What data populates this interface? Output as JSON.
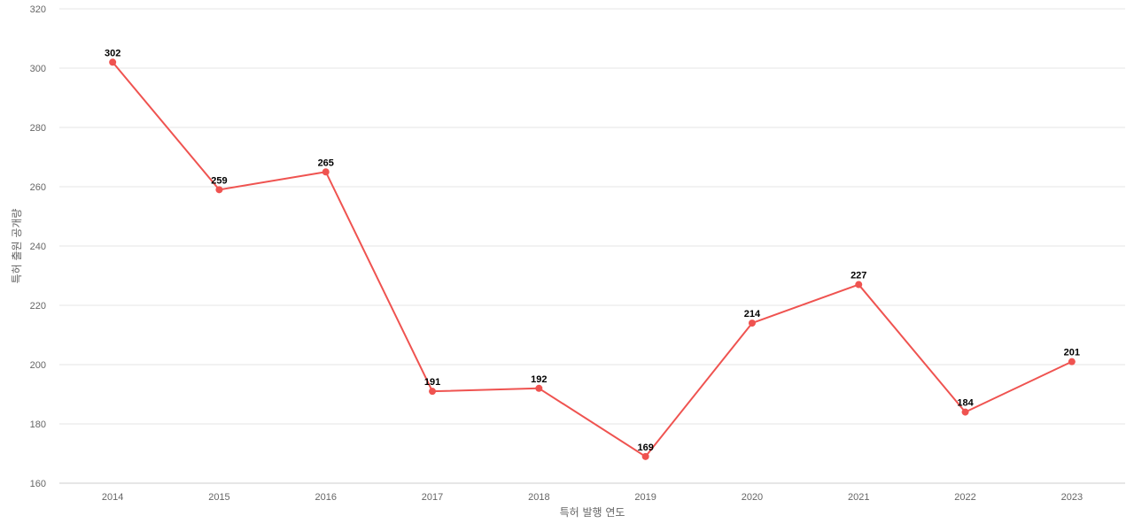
{
  "chart_data": {
    "type": "line",
    "title": "",
    "xlabel": "특허 발행 연도",
    "ylabel": "특허 출원 공개량",
    "categories": [
      "2014",
      "2015",
      "2016",
      "2017",
      "2018",
      "2019",
      "2020",
      "2021",
      "2022",
      "2023"
    ],
    "series": [
      {
        "values": [
          302,
          259,
          265,
          191,
          192,
          169,
          214,
          227,
          184,
          201
        ],
        "color": "#ef5350"
      }
    ],
    "ylim": [
      160,
      320
    ],
    "yticks": [
      160,
      180,
      200,
      220,
      240,
      260,
      280,
      300,
      320
    ],
    "grid": true,
    "legend": "none",
    "data_labels": true
  }
}
